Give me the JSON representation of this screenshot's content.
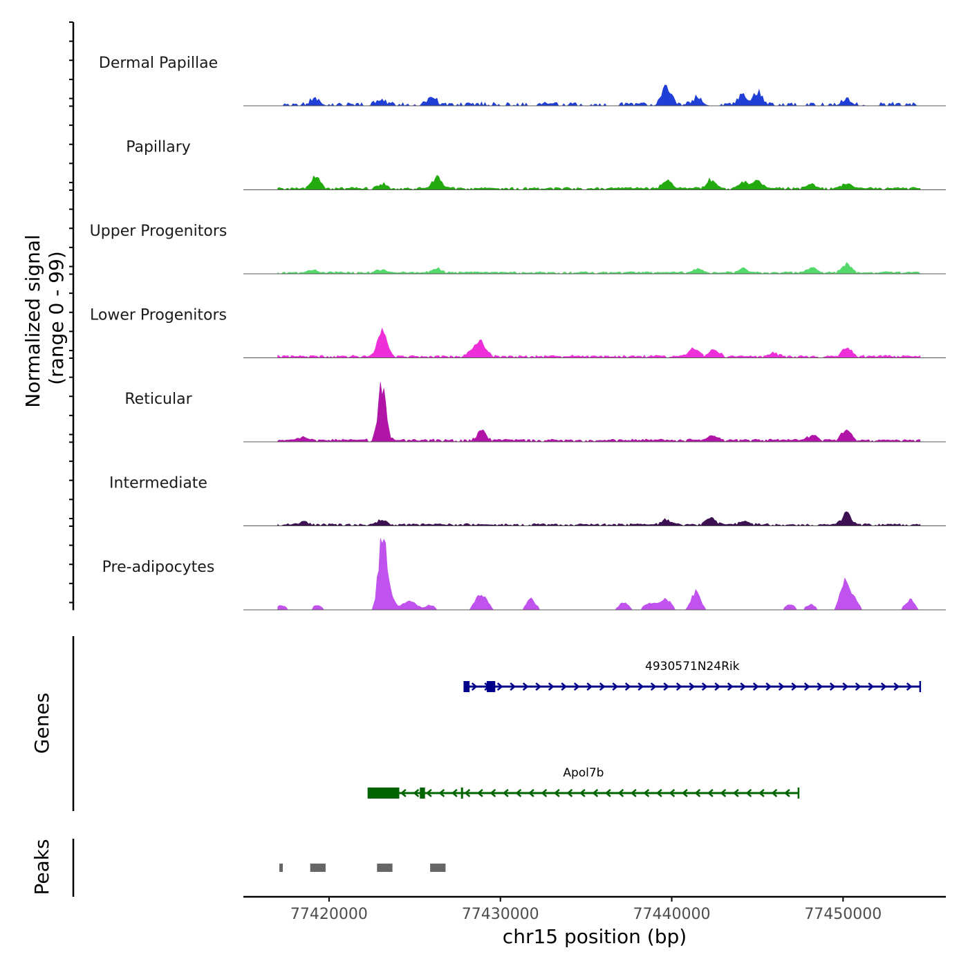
{
  "chart_data": {
    "type": "area",
    "title": "",
    "xlabel": "chr15 position (bp)",
    "ylabel": "Normalized signal\n(range 0 - 99)",
    "ylabel_lines": [
      "Normalized signal",
      "(range 0 - 99)"
    ],
    "xlim": [
      77415000,
      77456000
    ],
    "ylim": [
      0,
      99
    ],
    "x_ticks": [
      77420000,
      77430000,
      77440000,
      77450000
    ],
    "x_tick_labels": [
      "77420000",
      "77430000",
      "77440000",
      "77450000"
    ],
    "data_start": 77417000,
    "data_end": 77454500,
    "step_bp": 100,
    "tracks": [
      {
        "name": "Dermal Papillae",
        "color": "#1f3fd6",
        "base": 2.5,
        "noise": 2.5,
        "gapProb": 0.55,
        "seed": 11,
        "peaks": [
          [
            77419200,
            10
          ],
          [
            77423000,
            8
          ],
          [
            77426000,
            10
          ],
          [
            77439700,
            28
          ],
          [
            77444100,
            14
          ],
          [
            77445000,
            20
          ],
          [
            77441500,
            10
          ],
          [
            77450200,
            9
          ]
        ]
      },
      {
        "name": "Papillary",
        "color": "#22aa0e",
        "base": 2.0,
        "noise": 1.5,
        "gapProb": 0.15,
        "seed": 23,
        "peaks": [
          [
            77419200,
            19
          ],
          [
            77426300,
            18
          ],
          [
            77423100,
            7
          ],
          [
            77439700,
            13
          ],
          [
            77442300,
            14
          ],
          [
            77444200,
            10
          ],
          [
            77445000,
            11
          ],
          [
            77450200,
            8
          ],
          [
            77448200,
            6
          ]
        ]
      },
      {
        "name": "Upper Progenitors",
        "color": "#55d86b",
        "base": 1.8,
        "noise": 1.2,
        "gapProb": 0.12,
        "seed": 37,
        "peaks": [
          [
            77426300,
            6
          ],
          [
            77423000,
            5
          ],
          [
            77441500,
            6
          ],
          [
            77444200,
            6
          ],
          [
            77448200,
            7
          ],
          [
            77450200,
            14
          ],
          [
            77419000,
            4
          ]
        ]
      },
      {
        "name": "Lower Progenitors",
        "color": "#ee2ed8",
        "base": 2.0,
        "noise": 1.5,
        "gapProb": 0.15,
        "seed": 41,
        "peaks": [
          [
            77423100,
            42
          ],
          [
            77428900,
            22
          ],
          [
            77428400,
            10
          ],
          [
            77441300,
            12
          ],
          [
            77442500,
            11
          ],
          [
            77450200,
            14
          ],
          [
            77446000,
            5
          ]
        ]
      },
      {
        "name": "Reticular",
        "color": "#b015a8",
        "base": 2.2,
        "noise": 1.8,
        "gapProb": 0.15,
        "seed": 53,
        "peaks": [
          [
            77423100,
            85
          ],
          [
            77428900,
            14
          ],
          [
            77418400,
            6
          ],
          [
            77448200,
            8
          ],
          [
            77450200,
            18
          ],
          [
            77442400,
            7
          ]
        ]
      },
      {
        "name": "Intermediate",
        "color": "#3d1052",
        "base": 1.8,
        "noise": 1.4,
        "gapProb": 0.18,
        "seed": 67,
        "peaks": [
          [
            77450200,
            18
          ],
          [
            77439700,
            9
          ],
          [
            77442300,
            10
          ],
          [
            77423100,
            7
          ],
          [
            77418500,
            6
          ],
          [
            77444200,
            5
          ]
        ]
      },
      {
        "name": "Pre-adipocytes",
        "color": "#c052ee",
        "base": 0,
        "noise": 0,
        "gapProb": 0,
        "seed": 71,
        "peaks": [
          [
            77423100,
            108
          ],
          [
            77423500,
            30
          ],
          [
            77441400,
            28
          ],
          [
            77450100,
            42
          ],
          [
            77450600,
            18
          ],
          [
            77428700,
            16
          ],
          [
            77429100,
            14
          ],
          [
            77431800,
            16
          ],
          [
            77437200,
            12
          ],
          [
            77439700,
            16
          ],
          [
            77453900,
            16
          ],
          [
            77419300,
            7
          ],
          [
            77417200,
            7
          ],
          [
            77424500,
            12
          ],
          [
            77425000,
            9
          ],
          [
            77425900,
            8
          ],
          [
            77438600,
            8
          ],
          [
            77439100,
            8
          ],
          [
            77446900,
            8
          ],
          [
            77448100,
            8
          ]
        ]
      }
    ],
    "genes": [
      {
        "name": "4930571N24Rik",
        "strand": "+",
        "color": "#00008b",
        "start": 77427900,
        "end": 77454500,
        "exons": [
          [
            77427900,
            77428200
          ],
          [
            77429200,
            77429700
          ]
        ]
      },
      {
        "name": "Apol7b",
        "strand": "-",
        "color": "#006400",
        "start": 77422300,
        "end": 77447400,
        "exons": [
          [
            77422300,
            77424100
          ],
          [
            77425300,
            77425600
          ],
          [
            77427700,
            77427760
          ]
        ]
      }
    ],
    "peaks_track": {
      "label": "Peaks",
      "color": "#666666",
      "intervals": [
        [
          77417100,
          77417300
        ],
        [
          77418900,
          77419800
        ],
        [
          77422800,
          77423700
        ],
        [
          77425900,
          77426800
        ]
      ]
    },
    "section_labels": {
      "genes": "Genes",
      "peaks": "Peaks"
    }
  }
}
